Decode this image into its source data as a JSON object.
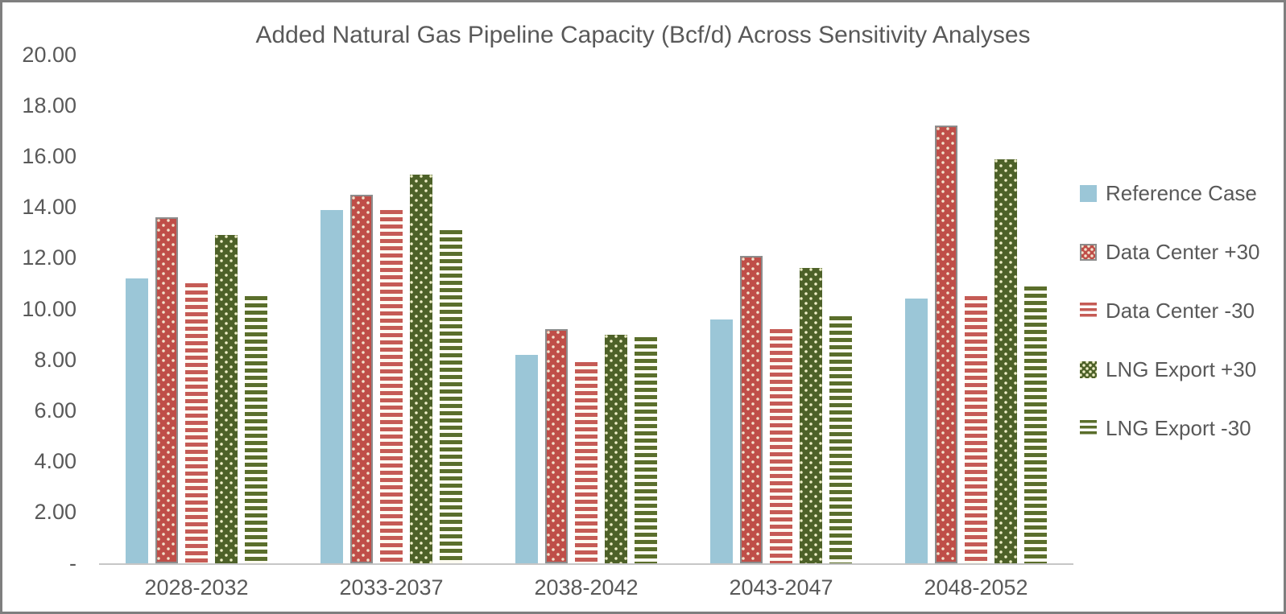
{
  "frame": {
    "border_color": "#7f7f7f",
    "background": "#ffffff",
    "text_color": "#595959",
    "axis_line_color": "#c6c6c6"
  },
  "chart_data": {
    "type": "bar",
    "title": "Added Natural Gas Pipeline Capacity (Bcf/d) Across Sensitivity Analyses",
    "xlabel": "",
    "ylabel": "",
    "ylim": [
      0,
      20
    ],
    "grid": false,
    "legend_position": "right",
    "categories": [
      "2028-2032",
      "2033-2037",
      "2038-2042",
      "2043-2047",
      "2048-2052"
    ],
    "yticks": [
      {
        "value": 20,
        "label": "20.00"
      },
      {
        "value": 18,
        "label": "18.00"
      },
      {
        "value": 16,
        "label": "16.00"
      },
      {
        "value": 14,
        "label": "14.00"
      },
      {
        "value": 12,
        "label": "12.00"
      },
      {
        "value": 10,
        "label": "10.00"
      },
      {
        "value": 8,
        "label": "8.00"
      },
      {
        "value": 6,
        "label": "6.00"
      },
      {
        "value": 4,
        "label": "4.00"
      },
      {
        "value": 2,
        "label": "2.00"
      },
      {
        "value": 0,
        "label": "-"
      }
    ],
    "series": [
      {
        "name": "Reference Case",
        "pattern": "solid",
        "color": "#9bc6d7",
        "dot_color": "",
        "bordered": false,
        "values": [
          11.2,
          13.9,
          8.2,
          9.6,
          10.4
        ]
      },
      {
        "name": "Data Center +30",
        "pattern": "dots",
        "color": "#bf4e48",
        "dot_color": "#f2e4ce",
        "bordered": true,
        "values": [
          13.6,
          14.5,
          9.2,
          12.1,
          17.2
        ]
      },
      {
        "name": "Data Center -30",
        "pattern": "stripes",
        "color": "#c55b55",
        "dot_color": "",
        "bordered": false,
        "values": [
          11.0,
          13.9,
          7.9,
          9.2,
          10.5
        ]
      },
      {
        "name": "LNG Export +30",
        "pattern": "dots",
        "color": "#4d6128",
        "dot_color": "#efefc8",
        "bordered": false,
        "values": [
          12.9,
          15.3,
          9.0,
          11.6,
          15.9
        ]
      },
      {
        "name": "LNG Export -30",
        "pattern": "stripes",
        "color": "#5a6e2b",
        "dot_color": "",
        "bordered": false,
        "values": [
          10.5,
          13.1,
          8.9,
          9.7,
          10.9
        ]
      }
    ]
  }
}
